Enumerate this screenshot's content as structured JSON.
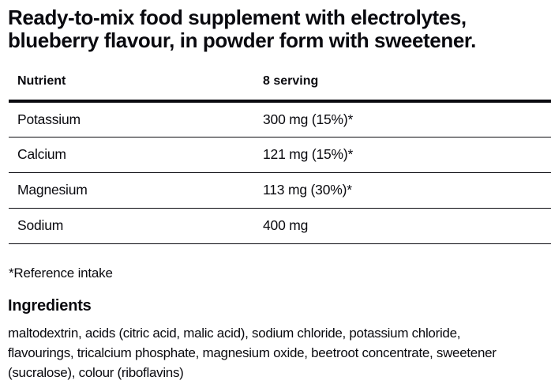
{
  "colors": {
    "background": "#ffffff",
    "text": "#0a0a0f",
    "rule": "#0a0a0f"
  },
  "title": {
    "lines": [
      "Ready-to-mix food supplement with electrolytes,",
      "blueberry flavour, in powder form with sweetener."
    ]
  },
  "nutrition_table": {
    "columns": [
      "Nutrient",
      "8 serving"
    ],
    "rows": [
      {
        "nutrient": "Potassium",
        "amount": "300 mg (15%)*"
      },
      {
        "nutrient": "Calcium",
        "amount": "121 mg (15%)*"
      },
      {
        "nutrient": "Magnesium",
        "amount": "113 mg (30%)*"
      },
      {
        "nutrient": "Sodium",
        "amount": "400 mg"
      }
    ]
  },
  "footnote": "*Reference intake",
  "ingredients": {
    "heading": "Ingredients",
    "lines": [
      "maltodextrin, acids (citric acid, malic acid), sodium chloride, potassium chloride,",
      "flavourings, tricalcium phosphate, magnesium oxide, beetroot concentrate, sweetener",
      "(sucralose), colour (riboflavins)"
    ]
  }
}
